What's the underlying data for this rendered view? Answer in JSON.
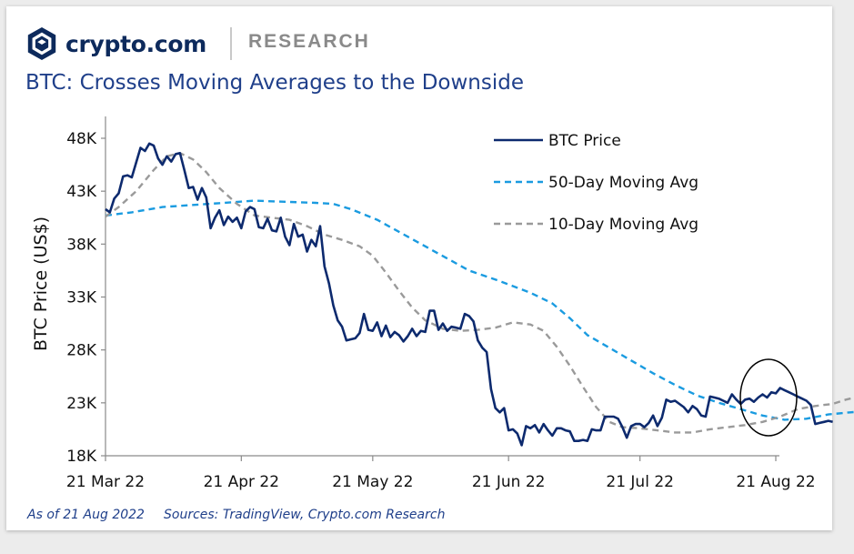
{
  "header": {
    "brand": "crypto.com",
    "section": "RESEARCH",
    "logo_icon": "crypto-com-shield-logo",
    "brand_color": "#0d2a5c"
  },
  "footer": {
    "as_of": "As of 21 Aug 2022",
    "sources": "Sources: TradingView, Crypto.com Research"
  },
  "chart_data": {
    "type": "line",
    "title": "BTC: Crosses Moving Averages to the Downside",
    "xlabel": "",
    "ylabel": "BTC Price (US$)",
    "x_start": "2022-03-21",
    "x_end": "2022-08-21",
    "ylim": [
      18000,
      50000
    ],
    "yticks": [
      {
        "value": 18000,
        "label": "18K"
      },
      {
        "value": 23000,
        "label": "23K"
      },
      {
        "value": 28000,
        "label": "28K"
      },
      {
        "value": 33000,
        "label": "33K"
      },
      {
        "value": 38000,
        "label": "38K"
      },
      {
        "value": 43000,
        "label": "43K"
      },
      {
        "value": 48000,
        "label": "48K"
      }
    ],
    "xticks": [
      {
        "date": "2022-03-21",
        "label": "21 Mar 22"
      },
      {
        "date": "2022-04-21",
        "label": "21 Apr 22"
      },
      {
        "date": "2022-05-21",
        "label": "21 May 22"
      },
      {
        "date": "2022-06-21",
        "label": "21 Jun 22"
      },
      {
        "date": "2022-07-21",
        "label": "21 Jul 22"
      },
      {
        "date": "2022-08-21",
        "label": "21 Aug 22"
      }
    ],
    "grid": false,
    "legend_position": "top-right",
    "annotation": "circle around latest prices (mid Aug 2022)",
    "annotation_span": {
      "x": [
        "2022-08-12",
        "2022-08-26"
      ],
      "y": [
        19800,
        26300
      ]
    },
    "series": [
      {
        "name": "BTC Price",
        "style": "solid",
        "color": "#0d2a6e",
        "points": [
          [
            "2022-03-21",
            41300
          ],
          [
            "2022-03-22",
            41000
          ],
          [
            "2022-03-23",
            42300
          ],
          [
            "2022-03-24",
            42800
          ],
          [
            "2022-03-25",
            44400
          ],
          [
            "2022-03-26",
            44500
          ],
          [
            "2022-03-27",
            44300
          ],
          [
            "2022-03-28",
            45700
          ],
          [
            "2022-03-29",
            47100
          ],
          [
            "2022-03-30",
            46800
          ],
          [
            "2022-03-31",
            47500
          ],
          [
            "2022-04-01",
            47300
          ],
          [
            "2022-04-02",
            46100
          ],
          [
            "2022-04-03",
            45500
          ],
          [
            "2022-04-04",
            46300
          ],
          [
            "2022-04-05",
            45800
          ],
          [
            "2022-04-06",
            46500
          ],
          [
            "2022-04-07",
            46600
          ],
          [
            "2022-04-08",
            45000
          ],
          [
            "2022-04-09",
            43300
          ],
          [
            "2022-04-10",
            43400
          ],
          [
            "2022-04-11",
            42200
          ],
          [
            "2022-04-12",
            43300
          ],
          [
            "2022-04-13",
            42400
          ],
          [
            "2022-04-14",
            39500
          ],
          [
            "2022-04-15",
            40500
          ],
          [
            "2022-04-16",
            41200
          ],
          [
            "2022-04-17",
            39800
          ],
          [
            "2022-04-18",
            40600
          ],
          [
            "2022-04-19",
            40100
          ],
          [
            "2022-04-20",
            40500
          ],
          [
            "2022-04-21",
            39500
          ],
          [
            "2022-04-22",
            41100
          ],
          [
            "2022-04-23",
            41500
          ],
          [
            "2022-04-24",
            41300
          ],
          [
            "2022-04-25",
            39600
          ],
          [
            "2022-04-26",
            39500
          ],
          [
            "2022-04-27",
            40400
          ],
          [
            "2022-04-28",
            39300
          ],
          [
            "2022-04-29",
            39200
          ],
          [
            "2022-04-30",
            40500
          ],
          [
            "2022-05-01",
            38700
          ],
          [
            "2022-05-02",
            37900
          ],
          [
            "2022-05-03",
            39900
          ],
          [
            "2022-05-04",
            38700
          ],
          [
            "2022-05-05",
            38900
          ],
          [
            "2022-05-06",
            37300
          ],
          [
            "2022-05-07",
            38400
          ],
          [
            "2022-05-08",
            37800
          ],
          [
            "2022-05-09",
            39700
          ],
          [
            "2022-05-10",
            35900
          ],
          [
            "2022-05-11",
            34300
          ],
          [
            "2022-05-12",
            32200
          ],
          [
            "2022-05-13",
            30800
          ],
          [
            "2022-05-14",
            30200
          ],
          [
            "2022-05-15",
            28900
          ],
          [
            "2022-05-16",
            29000
          ],
          [
            "2022-05-17",
            29100
          ],
          [
            "2022-05-18",
            29600
          ],
          [
            "2022-05-19",
            31400
          ],
          [
            "2022-05-20",
            29900
          ],
          [
            "2022-05-21",
            29800
          ],
          [
            "2022-05-22",
            30600
          ],
          [
            "2022-05-23",
            29300
          ],
          [
            "2022-05-24",
            30300
          ],
          [
            "2022-05-25",
            29200
          ],
          [
            "2022-05-26",
            29700
          ],
          [
            "2022-05-27",
            29400
          ],
          [
            "2022-05-28",
            28800
          ],
          [
            "2022-05-29",
            29300
          ],
          [
            "2022-05-30",
            30000
          ],
          [
            "2022-05-31",
            29300
          ],
          [
            "2022-06-01",
            29800
          ],
          [
            "2022-06-02",
            29700
          ],
          [
            "2022-06-03",
            31700
          ],
          [
            "2022-06-04",
            31700
          ],
          [
            "2022-06-05",
            29900
          ],
          [
            "2022-06-06",
            30500
          ],
          [
            "2022-06-07",
            29800
          ],
          [
            "2022-06-08",
            30200
          ],
          [
            "2022-06-09",
            30100
          ],
          [
            "2022-06-10",
            30000
          ],
          [
            "2022-06-11",
            31400
          ],
          [
            "2022-06-12",
            31200
          ],
          [
            "2022-06-13",
            30700
          ],
          [
            "2022-06-14",
            28900
          ],
          [
            "2022-06-15",
            28200
          ],
          [
            "2022-06-16",
            27800
          ],
          [
            "2022-06-17",
            24300
          ],
          [
            "2022-06-18",
            22500
          ],
          [
            "2022-06-19",
            22100
          ],
          [
            "2022-06-20",
            22500
          ],
          [
            "2022-06-21",
            20400
          ],
          [
            "2022-06-22",
            20500
          ],
          [
            "2022-06-23",
            20100
          ],
          [
            "2022-06-24",
            19000
          ],
          [
            "2022-06-25",
            20800
          ],
          [
            "2022-06-26",
            20600
          ],
          [
            "2022-06-27",
            20900
          ],
          [
            "2022-06-28",
            20200
          ],
          [
            "2022-06-29",
            21000
          ],
          [
            "2022-06-30",
            20400
          ],
          [
            "2022-07-01",
            19900
          ],
          [
            "2022-07-02",
            20600
          ],
          [
            "2022-07-03",
            20600
          ],
          [
            "2022-07-04",
            20400
          ],
          [
            "2022-07-05",
            20300
          ],
          [
            "2022-07-06",
            19400
          ],
          [
            "2022-07-07",
            19400
          ],
          [
            "2022-07-08",
            19500
          ],
          [
            "2022-07-09",
            19400
          ],
          [
            "2022-07-10",
            20500
          ],
          [
            "2022-07-11",
            20400
          ],
          [
            "2022-07-12",
            20400
          ],
          [
            "2022-07-13",
            21700
          ],
          [
            "2022-07-14",
            21700
          ],
          [
            "2022-07-15",
            21700
          ],
          [
            "2022-07-16",
            21500
          ],
          [
            "2022-07-17",
            20700
          ],
          [
            "2022-07-18",
            19700
          ],
          [
            "2022-07-19",
            20800
          ],
          [
            "2022-07-20",
            21000
          ],
          [
            "2022-07-21",
            21000
          ],
          [
            "2022-07-22",
            20700
          ],
          [
            "2022-07-23",
            21100
          ],
          [
            "2022-07-24",
            21800
          ],
          [
            "2022-07-25",
            20800
          ],
          [
            "2022-07-26",
            21600
          ],
          [
            "2022-07-27",
            23300
          ],
          [
            "2022-07-28",
            23100
          ],
          [
            "2022-07-29",
            23200
          ],
          [
            "2022-07-30",
            22900
          ],
          [
            "2022-07-31",
            22600
          ],
          [
            "2022-08-01",
            22100
          ],
          [
            "2022-08-02",
            22700
          ],
          [
            "2022-08-03",
            22400
          ],
          [
            "2022-08-04",
            21800
          ],
          [
            "2022-08-05",
            21700
          ],
          [
            "2022-08-06",
            23600
          ],
          [
            "2022-08-07",
            23500
          ],
          [
            "2022-08-08",
            23400
          ],
          [
            "2022-08-09",
            23200
          ],
          [
            "2022-08-10",
            23000
          ],
          [
            "2022-08-11",
            23800
          ],
          [
            "2022-08-12",
            23300
          ],
          [
            "2022-08-13",
            22900
          ],
          [
            "2022-08-14",
            23300
          ],
          [
            "2022-08-15",
            23400
          ],
          [
            "2022-08-16",
            23100
          ],
          [
            "2022-08-17",
            23500
          ],
          [
            "2022-08-18",
            23800
          ],
          [
            "2022-08-19",
            23500
          ],
          [
            "2022-08-20",
            24000
          ],
          [
            "2022-08-21",
            23900
          ],
          [
            "2022-08-22",
            24400
          ],
          [
            "2022-08-23",
            24200
          ],
          [
            "2022-08-24",
            24000
          ],
          [
            "2022-08-25",
            23800
          ],
          [
            "2022-08-26",
            23600
          ],
          [
            "2022-08-27",
            23400
          ],
          [
            "2022-08-28",
            23200
          ],
          [
            "2022-08-29",
            22800
          ],
          [
            "2022-08-30",
            21000
          ],
          [
            "2022-08-31",
            21100
          ],
          [
            "2022-09-01",
            21200
          ],
          [
            "2022-09-02",
            21300
          ],
          [
            "2022-09-03",
            21200
          ]
        ]
      },
      {
        "name": "50-Day Moving Avg",
        "style": "dashed",
        "color": "#1a9be0",
        "points": [
          [
            "2022-03-21",
            40700
          ],
          [
            "2022-03-27",
            41000
          ],
          [
            "2022-04-03",
            41500
          ],
          [
            "2022-04-10",
            41700
          ],
          [
            "2022-04-17",
            41900
          ],
          [
            "2022-04-24",
            42100
          ],
          [
            "2022-05-01",
            42000
          ],
          [
            "2022-05-08",
            41900
          ],
          [
            "2022-05-12",
            41800
          ],
          [
            "2022-05-16",
            41300
          ],
          [
            "2022-05-22",
            40300
          ],
          [
            "2022-05-29",
            38700
          ],
          [
            "2022-06-05",
            37100
          ],
          [
            "2022-06-12",
            35500
          ],
          [
            "2022-06-19",
            34500
          ],
          [
            "2022-06-26",
            33400
          ],
          [
            "2022-07-01",
            32400
          ],
          [
            "2022-07-05",
            31000
          ],
          [
            "2022-07-09",
            29400
          ],
          [
            "2022-07-14",
            28200
          ],
          [
            "2022-07-19",
            27000
          ],
          [
            "2022-07-24",
            25800
          ],
          [
            "2022-07-29",
            24700
          ],
          [
            "2022-08-03",
            23700
          ],
          [
            "2022-08-08",
            23000
          ],
          [
            "2022-08-13",
            22400
          ],
          [
            "2022-08-18",
            21800
          ],
          [
            "2022-08-23",
            21400
          ],
          [
            "2022-08-28",
            21500
          ],
          [
            "2022-09-02",
            21900
          ],
          [
            "2022-09-07",
            22100
          ],
          [
            "2022-09-10",
            22200
          ],
          [
            "2022-09-14",
            22300
          ],
          [
            "2022-09-17",
            22400
          ]
        ]
      },
      {
        "name": "10-Day Moving Avg",
        "style": "dashed",
        "color": "#9a9a9a",
        "points": [
          [
            "2022-03-21",
            40600
          ],
          [
            "2022-03-24",
            41500
          ],
          [
            "2022-03-28",
            43000
          ],
          [
            "2022-04-01",
            45000
          ],
          [
            "2022-04-04",
            46300
          ],
          [
            "2022-04-07",
            46600
          ],
          [
            "2022-04-10",
            46000
          ],
          [
            "2022-04-13",
            44800
          ],
          [
            "2022-04-16",
            43300
          ],
          [
            "2022-04-20",
            41800
          ],
          [
            "2022-04-24",
            40700
          ],
          [
            "2022-04-28",
            40500
          ],
          [
            "2022-05-02",
            40300
          ],
          [
            "2022-05-06",
            39700
          ],
          [
            "2022-05-10",
            38900
          ],
          [
            "2022-05-14",
            38400
          ],
          [
            "2022-05-18",
            37800
          ],
          [
            "2022-05-21",
            36900
          ],
          [
            "2022-05-24",
            35300
          ],
          [
            "2022-05-27",
            33600
          ],
          [
            "2022-05-30",
            32000
          ],
          [
            "2022-06-02",
            30800
          ],
          [
            "2022-06-06",
            30000
          ],
          [
            "2022-06-10",
            29800
          ],
          [
            "2022-06-14",
            29900
          ],
          [
            "2022-06-18",
            30100
          ],
          [
            "2022-06-22",
            30600
          ],
          [
            "2022-06-26",
            30400
          ],
          [
            "2022-06-29",
            29800
          ],
          [
            "2022-07-02",
            28300
          ],
          [
            "2022-07-05",
            26500
          ],
          [
            "2022-07-08",
            24500
          ],
          [
            "2022-07-11",
            22600
          ],
          [
            "2022-07-14",
            21200
          ],
          [
            "2022-07-17",
            20700
          ],
          [
            "2022-07-21",
            20600
          ],
          [
            "2022-07-25",
            20400
          ],
          [
            "2022-07-29",
            20200
          ],
          [
            "2022-08-02",
            20200
          ],
          [
            "2022-08-06",
            20500
          ],
          [
            "2022-08-10",
            20700
          ],
          [
            "2022-08-14",
            20900
          ],
          [
            "2022-08-18",
            21200
          ],
          [
            "2022-08-22",
            21700
          ],
          [
            "2022-08-26",
            22400
          ],
          [
            "2022-08-30",
            22700
          ],
          [
            "2022-09-03",
            22900
          ],
          [
            "2022-09-06",
            23300
          ],
          [
            "2022-09-09",
            23600
          ],
          [
            "2022-09-12",
            23700
          ],
          [
            "2022-09-15",
            23400
          ],
          [
            "2022-09-17",
            23000
          ]
        ]
      }
    ]
  }
}
